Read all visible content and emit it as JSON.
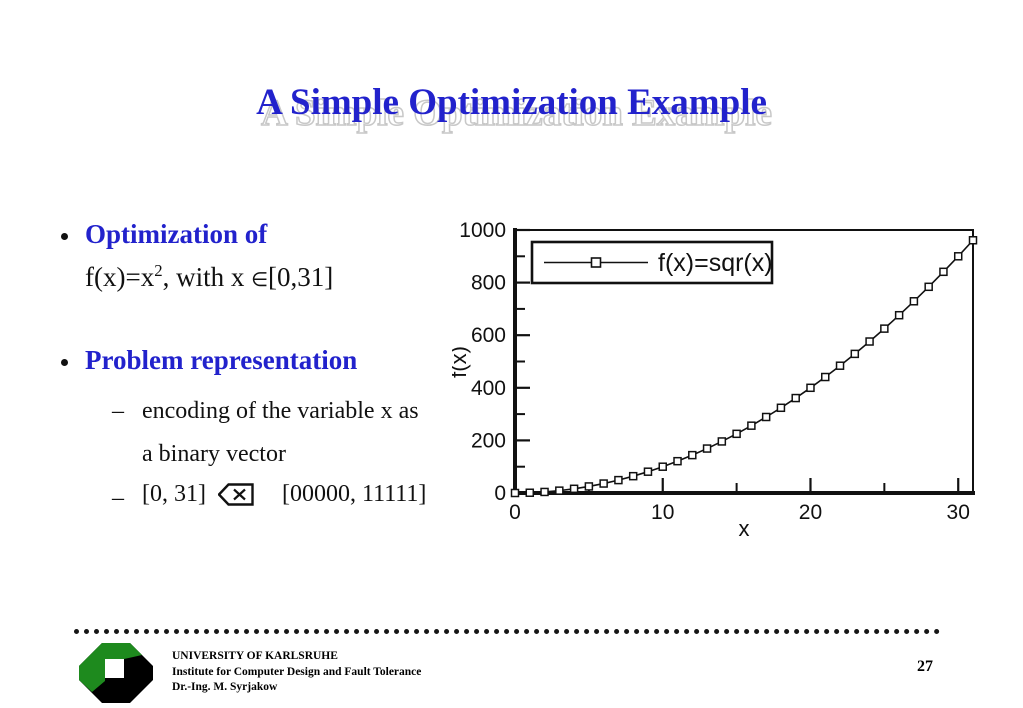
{
  "slide": {
    "title": "A Simple Optimization Example",
    "bullets": {
      "b1_label": "Optimization of",
      "b1_line2": {
        "p1": "f(x)=x",
        "sup": "2",
        "p2": ", with x ",
        "elem": "∈",
        "p3": "[0,31]"
      },
      "b2_label": "Problem representation",
      "dash": "–",
      "sb1_line1": "encoding of the variable x as",
      "sb1_line2": "a binary vector",
      "sb2_left": "[0, 31]",
      "sb2_symbol": "backspace-map-icon",
      "sb2_right": "[00000, 11111]"
    },
    "footer": {
      "org_line1": "UNIVERSITY OF KARLSRUHE",
      "org_line2": "Institute for Computer Design and Fault Tolerance",
      "org_line3": "Dr.-Ing. M. Syrjakow",
      "page_number": "27"
    },
    "colors": {
      "accent_blue": "#2222CC",
      "title_shadow_outline": "#C8C8C8",
      "text_black": "#111111",
      "logo_green": "#1E8A1E",
      "logo_black": "#000000"
    }
  },
  "chart_data": {
    "type": "line",
    "title": "",
    "xlabel": "x",
    "ylabel": "f(x)",
    "legend_position": "top-left",
    "legend": [
      {
        "label": "f(x)=sqr(x)",
        "marker": "open-square"
      }
    ],
    "grid": false,
    "xlim": [
      0,
      31
    ],
    "ylim": [
      0,
      1000
    ],
    "xticks_major": [
      0,
      10,
      20,
      30
    ],
    "xticks_minor": [
      5,
      15,
      25
    ],
    "yticks_major": [
      0,
      200,
      400,
      600,
      800,
      1000
    ],
    "yticks_minor": [
      100,
      300,
      500,
      700,
      900
    ],
    "x": [
      0,
      1,
      2,
      3,
      4,
      5,
      6,
      7,
      8,
      9,
      10,
      11,
      12,
      13,
      14,
      15,
      16,
      17,
      18,
      19,
      20,
      21,
      22,
      23,
      24,
      25,
      26,
      27,
      28,
      29,
      30,
      31
    ],
    "series": [
      {
        "name": "f(x)=sqr(x)",
        "values": [
          0,
          1,
          4,
          9,
          16,
          25,
          36,
          49,
          64,
          81,
          100,
          121,
          144,
          169,
          196,
          225,
          256,
          289,
          324,
          361,
          400,
          441,
          484,
          529,
          576,
          625,
          676,
          729,
          784,
          841,
          900,
          961
        ]
      }
    ]
  }
}
